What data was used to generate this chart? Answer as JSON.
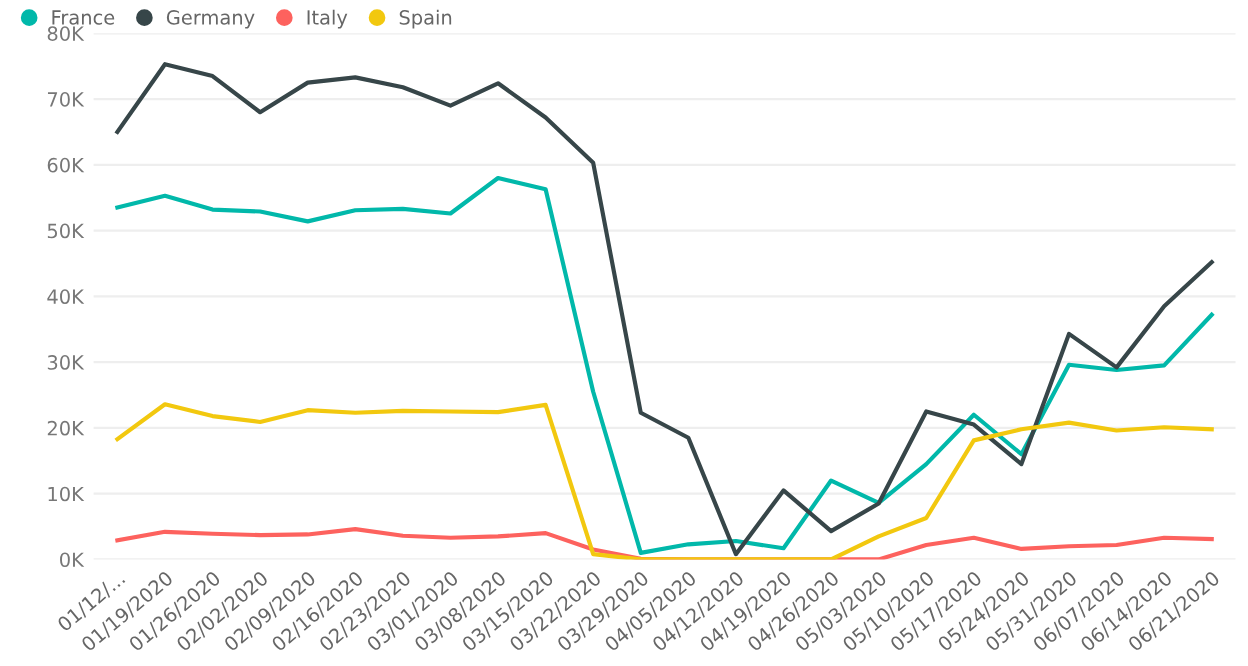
{
  "chart_data": {
    "type": "line",
    "categories": [
      "01/12/...",
      "01/19/2020",
      "01/26/2020",
      "02/02/2020",
      "02/09/2020",
      "02/16/2020",
      "02/23/2020",
      "03/01/2020",
      "03/08/2020",
      "03/15/2020",
      "03/22/2020",
      "03/29/2020",
      "04/05/2020",
      "04/12/2020",
      "04/19/2020",
      "04/26/2020",
      "05/03/2020",
      "05/10/2020",
      "05/17/2020",
      "05/24/2020",
      "05/31/2020",
      "06/07/2020",
      "06/14/2020",
      "06/21/2020"
    ],
    "series": [
      {
        "name": "France",
        "color": "#01b8aa",
        "values": [
          53500,
          55300,
          53200,
          52900,
          51400,
          53100,
          53300,
          52600,
          58000,
          56300,
          25500,
          1000,
          2300,
          2800,
          1700,
          12000,
          8600,
          14500,
          22000,
          16000,
          29600,
          28800,
          29500,
          37200
        ]
      },
      {
        "name": "Germany",
        "color": "#374649",
        "values": [
          65000,
          75300,
          73500,
          68000,
          72500,
          73300,
          71800,
          69000,
          72400,
          67200,
          60300,
          22300,
          18500,
          800,
          10500,
          4300,
          8500,
          22500,
          20500,
          14500,
          34300,
          29200,
          38500,
          45200
        ]
      },
      {
        "name": "Italy",
        "color": "#fd625e",
        "values": [
          2900,
          4200,
          3900,
          3700,
          3800,
          4600,
          3600,
          3300,
          3500,
          4000,
          1500,
          100,
          0,
          0,
          0,
          0,
          0,
          2200,
          3300,
          1600,
          2000,
          2200,
          3300,
          3100
        ]
      },
      {
        "name": "Spain",
        "color": "#f2c80f",
        "values": [
          18300,
          23600,
          21800,
          20900,
          22700,
          22300,
          22600,
          22500,
          22400,
          23500,
          800,
          0,
          0,
          0,
          0,
          0,
          3500,
          6300,
          18100,
          19800,
          20800,
          19600,
          20100,
          19800
        ]
      }
    ],
    "ylim": [
      0,
      80000
    ],
    "yticks": [
      {
        "value": 0,
        "label": "0K"
      },
      {
        "value": 10000,
        "label": "10K"
      },
      {
        "value": 20000,
        "label": "20K"
      },
      {
        "value": 30000,
        "label": "30K"
      },
      {
        "value": 40000,
        "label": "40K"
      },
      {
        "value": 50000,
        "label": "50K"
      },
      {
        "value": 60000,
        "label": "60K"
      },
      {
        "value": 70000,
        "label": "70K"
      },
      {
        "value": 80000,
        "label": "80K"
      }
    ],
    "grid": "y",
    "legend": "top left",
    "marker": "none",
    "line_style": "solid"
  }
}
